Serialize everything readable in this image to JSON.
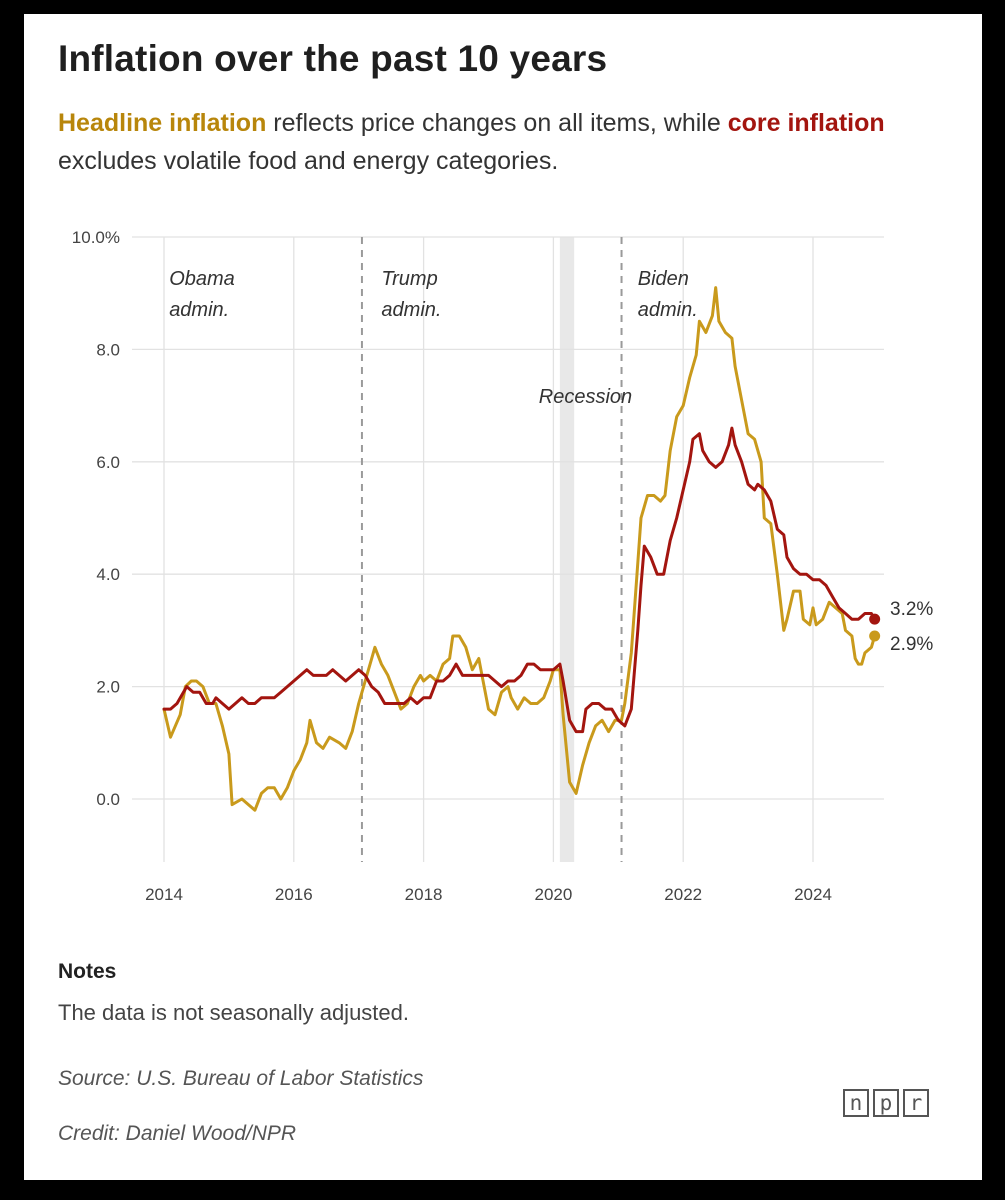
{
  "header": {
    "title": "Inflation over the past 10 years",
    "sub_headline": "Headline inflation",
    "sub_mid": " reflects price changes on all items, while ",
    "sub_core": "core inflation",
    "sub_end": " excludes volatile food and energy categories."
  },
  "chart_data": {
    "type": "line",
    "title": "Inflation over the past 10 years",
    "xlabel": "",
    "ylabel": "",
    "xlim": [
      2014,
      2024.9
    ],
    "ylim": [
      -1,
      10
    ],
    "y_ticks": [
      {
        "v": 10,
        "label": "10.0%"
      },
      {
        "v": 8,
        "label": "8.0"
      },
      {
        "v": 6,
        "label": "6.0"
      },
      {
        "v": 4,
        "label": "4.0"
      },
      {
        "v": 2,
        "label": "2.0"
      },
      {
        "v": 0,
        "label": "0.0"
      }
    ],
    "x_ticks": [
      {
        "v": 2014,
        "label": "2014"
      },
      {
        "v": 2016,
        "label": "2016"
      },
      {
        "v": 2018,
        "label": "2018"
      },
      {
        "v": 2020,
        "label": "2020"
      },
      {
        "v": 2022,
        "label": "2022"
      },
      {
        "v": 2024,
        "label": "2024"
      }
    ],
    "recession": {
      "from": 2020.1,
      "to": 2020.32,
      "label": "Recession"
    },
    "admin_lines": [
      2017.05,
      2021.05
    ],
    "admins": [
      {
        "name": "Obama",
        "line2": "admin.",
        "x": 2014.08
      },
      {
        "name": "Trump",
        "line2": "admin.",
        "x": 2017.35
      },
      {
        "name": "Biden",
        "line2": "admin.",
        "x": 2021.3
      }
    ],
    "series": [
      {
        "name": "Headline inflation",
        "color": "#c99a1c",
        "end_label": "2.9%",
        "points": [
          [
            2014.0,
            1.6
          ],
          [
            2014.1,
            1.1
          ],
          [
            2014.25,
            1.5
          ],
          [
            2014.33,
            2.0
          ],
          [
            2014.42,
            2.1
          ],
          [
            2014.5,
            2.1
          ],
          [
            2014.6,
            2.0
          ],
          [
            2014.7,
            1.7
          ],
          [
            2014.8,
            1.7
          ],
          [
            2014.9,
            1.3
          ],
          [
            2015.0,
            0.8
          ],
          [
            2015.05,
            -0.1
          ],
          [
            2015.2,
            0.0
          ],
          [
            2015.3,
            -0.1
          ],
          [
            2015.4,
            -0.2
          ],
          [
            2015.5,
            0.1
          ],
          [
            2015.6,
            0.2
          ],
          [
            2015.7,
            0.2
          ],
          [
            2015.8,
            0.0
          ],
          [
            2015.9,
            0.2
          ],
          [
            2016.0,
            0.5
          ],
          [
            2016.1,
            0.7
          ],
          [
            2016.2,
            1.0
          ],
          [
            2016.25,
            1.4
          ],
          [
            2016.35,
            1.0
          ],
          [
            2016.45,
            0.9
          ],
          [
            2016.55,
            1.1
          ],
          [
            2016.7,
            1.0
          ],
          [
            2016.8,
            0.9
          ],
          [
            2016.9,
            1.2
          ],
          [
            2017.0,
            1.7
          ],
          [
            2017.1,
            2.1
          ],
          [
            2017.2,
            2.5
          ],
          [
            2017.25,
            2.7
          ],
          [
            2017.35,
            2.4
          ],
          [
            2017.45,
            2.2
          ],
          [
            2017.55,
            1.9
          ],
          [
            2017.65,
            1.6
          ],
          [
            2017.75,
            1.7
          ],
          [
            2017.85,
            2.0
          ],
          [
            2017.95,
            2.2
          ],
          [
            2018.0,
            2.1
          ],
          [
            2018.1,
            2.2
          ],
          [
            2018.2,
            2.1
          ],
          [
            2018.3,
            2.4
          ],
          [
            2018.4,
            2.5
          ],
          [
            2018.45,
            2.9
          ],
          [
            2018.55,
            2.9
          ],
          [
            2018.65,
            2.7
          ],
          [
            2018.75,
            2.3
          ],
          [
            2018.85,
            2.5
          ],
          [
            2018.9,
            2.2
          ],
          [
            2019.0,
            1.6
          ],
          [
            2019.1,
            1.5
          ],
          [
            2019.2,
            1.9
          ],
          [
            2019.3,
            2.0
          ],
          [
            2019.35,
            1.8
          ],
          [
            2019.45,
            1.6
          ],
          [
            2019.55,
            1.8
          ],
          [
            2019.65,
            1.7
          ],
          [
            2019.75,
            1.7
          ],
          [
            2019.85,
            1.8
          ],
          [
            2019.95,
            2.1
          ],
          [
            2020.0,
            2.3
          ],
          [
            2020.1,
            2.3
          ],
          [
            2020.15,
            1.5
          ],
          [
            2020.25,
            0.3
          ],
          [
            2020.35,
            0.1
          ],
          [
            2020.45,
            0.6
          ],
          [
            2020.55,
            1.0
          ],
          [
            2020.65,
            1.3
          ],
          [
            2020.75,
            1.4
          ],
          [
            2020.85,
            1.2
          ],
          [
            2020.95,
            1.4
          ],
          [
            2021.05,
            1.4
          ],
          [
            2021.1,
            1.7
          ],
          [
            2021.2,
            2.6
          ],
          [
            2021.3,
            4.2
          ],
          [
            2021.35,
            5.0
          ],
          [
            2021.45,
            5.4
          ],
          [
            2021.55,
            5.4
          ],
          [
            2021.65,
            5.3
          ],
          [
            2021.72,
            5.4
          ],
          [
            2021.8,
            6.2
          ],
          [
            2021.9,
            6.8
          ],
          [
            2022.0,
            7.0
          ],
          [
            2022.1,
            7.5
          ],
          [
            2022.2,
            7.9
          ],
          [
            2022.25,
            8.5
          ],
          [
            2022.35,
            8.3
          ],
          [
            2022.45,
            8.6
          ],
          [
            2022.5,
            9.1
          ],
          [
            2022.55,
            8.5
          ],
          [
            2022.65,
            8.3
          ],
          [
            2022.75,
            8.2
          ],
          [
            2022.8,
            7.7
          ],
          [
            2022.9,
            7.1
          ],
          [
            2023.0,
            6.5
          ],
          [
            2023.1,
            6.4
          ],
          [
            2023.2,
            6.0
          ],
          [
            2023.25,
            5.0
          ],
          [
            2023.35,
            4.9
          ],
          [
            2023.45,
            4.0
          ],
          [
            2023.55,
            3.0
          ],
          [
            2023.6,
            3.2
          ],
          [
            2023.7,
            3.7
          ],
          [
            2023.8,
            3.7
          ],
          [
            2023.85,
            3.2
          ],
          [
            2023.95,
            3.1
          ],
          [
            2024.0,
            3.4
          ],
          [
            2024.05,
            3.1
          ],
          [
            2024.15,
            3.2
          ],
          [
            2024.25,
            3.5
          ],
          [
            2024.35,
            3.4
          ],
          [
            2024.45,
            3.3
          ],
          [
            2024.5,
            3.0
          ],
          [
            2024.6,
            2.9
          ],
          [
            2024.65,
            2.5
          ],
          [
            2024.7,
            2.4
          ],
          [
            2024.75,
            2.4
          ],
          [
            2024.8,
            2.6
          ],
          [
            2024.9,
            2.7
          ],
          [
            2024.95,
            2.9
          ]
        ]
      },
      {
        "name": "Core inflation",
        "color": "#a3150f",
        "end_label": "3.2%",
        "points": [
          [
            2014.0,
            1.6
          ],
          [
            2014.1,
            1.6
          ],
          [
            2014.2,
            1.7
          ],
          [
            2014.35,
            2.0
          ],
          [
            2014.45,
            1.9
          ],
          [
            2014.55,
            1.9
          ],
          [
            2014.65,
            1.7
          ],
          [
            2014.75,
            1.7
          ],
          [
            2014.8,
            1.8
          ],
          [
            2014.9,
            1.7
          ],
          [
            2015.0,
            1.6
          ],
          [
            2015.1,
            1.7
          ],
          [
            2015.2,
            1.8
          ],
          [
            2015.3,
            1.7
          ],
          [
            2015.4,
            1.7
          ],
          [
            2015.5,
            1.8
          ],
          [
            2015.6,
            1.8
          ],
          [
            2015.7,
            1.8
          ],
          [
            2015.8,
            1.9
          ],
          [
            2015.9,
            2.0
          ],
          [
            2016.0,
            2.1
          ],
          [
            2016.1,
            2.2
          ],
          [
            2016.2,
            2.3
          ],
          [
            2016.3,
            2.2
          ],
          [
            2016.4,
            2.2
          ],
          [
            2016.5,
            2.2
          ],
          [
            2016.6,
            2.3
          ],
          [
            2016.7,
            2.2
          ],
          [
            2016.8,
            2.1
          ],
          [
            2016.9,
            2.2
          ],
          [
            2017.0,
            2.3
          ],
          [
            2017.1,
            2.2
          ],
          [
            2017.2,
            2.0
          ],
          [
            2017.3,
            1.9
          ],
          [
            2017.4,
            1.7
          ],
          [
            2017.5,
            1.7
          ],
          [
            2017.6,
            1.7
          ],
          [
            2017.7,
            1.7
          ],
          [
            2017.8,
            1.8
          ],
          [
            2017.9,
            1.7
          ],
          [
            2018.0,
            1.8
          ],
          [
            2018.1,
            1.8
          ],
          [
            2018.2,
            2.1
          ],
          [
            2018.3,
            2.1
          ],
          [
            2018.4,
            2.2
          ],
          [
            2018.5,
            2.4
          ],
          [
            2018.6,
            2.2
          ],
          [
            2018.7,
            2.2
          ],
          [
            2018.8,
            2.2
          ],
          [
            2018.9,
            2.2
          ],
          [
            2019.0,
            2.2
          ],
          [
            2019.1,
            2.1
          ],
          [
            2019.2,
            2.0
          ],
          [
            2019.3,
            2.1
          ],
          [
            2019.4,
            2.1
          ],
          [
            2019.5,
            2.2
          ],
          [
            2019.6,
            2.4
          ],
          [
            2019.7,
            2.4
          ],
          [
            2019.8,
            2.3
          ],
          [
            2019.9,
            2.3
          ],
          [
            2020.0,
            2.3
          ],
          [
            2020.1,
            2.4
          ],
          [
            2020.15,
            2.1
          ],
          [
            2020.25,
            1.4
          ],
          [
            2020.35,
            1.2
          ],
          [
            2020.45,
            1.2
          ],
          [
            2020.5,
            1.6
          ],
          [
            2020.6,
            1.7
          ],
          [
            2020.7,
            1.7
          ],
          [
            2020.8,
            1.6
          ],
          [
            2020.9,
            1.6
          ],
          [
            2021.0,
            1.4
          ],
          [
            2021.1,
            1.3
          ],
          [
            2021.2,
            1.6
          ],
          [
            2021.3,
            3.0
          ],
          [
            2021.35,
            3.8
          ],
          [
            2021.4,
            4.5
          ],
          [
            2021.5,
            4.3
          ],
          [
            2021.6,
            4.0
          ],
          [
            2021.7,
            4.0
          ],
          [
            2021.8,
            4.6
          ],
          [
            2021.9,
            5.0
          ],
          [
            2022.0,
            5.5
          ],
          [
            2022.1,
            6.0
          ],
          [
            2022.15,
            6.4
          ],
          [
            2022.25,
            6.5
          ],
          [
            2022.3,
            6.2
          ],
          [
            2022.4,
            6.0
          ],
          [
            2022.5,
            5.9
          ],
          [
            2022.6,
            6.0
          ],
          [
            2022.7,
            6.3
          ],
          [
            2022.75,
            6.6
          ],
          [
            2022.8,
            6.3
          ],
          [
            2022.9,
            6.0
          ],
          [
            2023.0,
            5.6
          ],
          [
            2023.1,
            5.5
          ],
          [
            2023.15,
            5.6
          ],
          [
            2023.25,
            5.5
          ],
          [
            2023.35,
            5.3
          ],
          [
            2023.45,
            4.8
          ],
          [
            2023.55,
            4.7
          ],
          [
            2023.6,
            4.3
          ],
          [
            2023.7,
            4.1
          ],
          [
            2023.8,
            4.0
          ],
          [
            2023.9,
            4.0
          ],
          [
            2024.0,
            3.9
          ],
          [
            2024.1,
            3.9
          ],
          [
            2024.2,
            3.8
          ],
          [
            2024.3,
            3.6
          ],
          [
            2024.4,
            3.4
          ],
          [
            2024.5,
            3.3
          ],
          [
            2024.6,
            3.2
          ],
          [
            2024.7,
            3.2
          ],
          [
            2024.8,
            3.3
          ],
          [
            2024.9,
            3.3
          ],
          [
            2024.95,
            3.2
          ]
        ]
      }
    ]
  },
  "notes": {
    "heading": "Notes",
    "text": "The data is not seasonally adjusted."
  },
  "source": "Source: U.S. Bureau of Labor Statistics",
  "credit": "Credit: Daniel Wood/NPR",
  "logo": [
    "n",
    "p",
    "r"
  ]
}
